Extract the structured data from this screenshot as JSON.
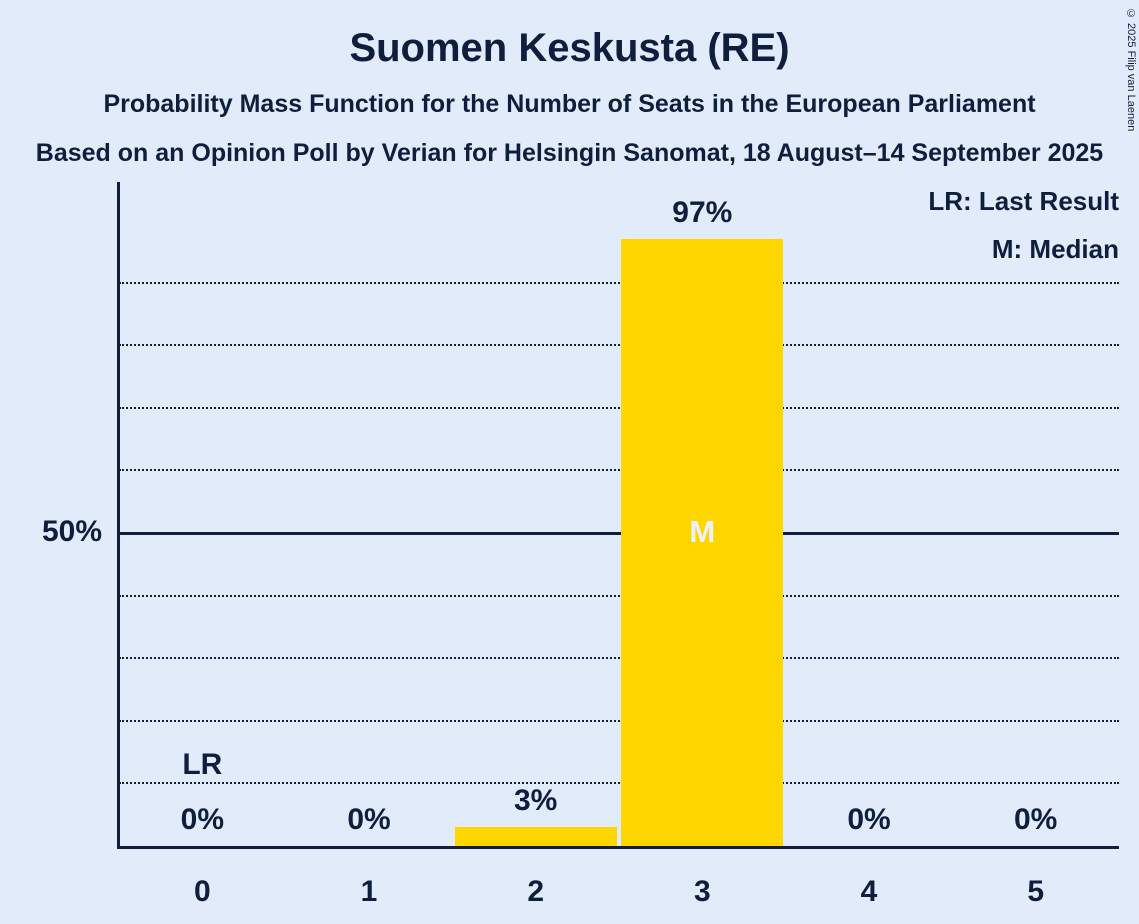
{
  "title": "Suomen Keskusta (RE)",
  "subtitle1": "Probability Mass Function for the Number of Seats in the European Parliament",
  "subtitle2": "Based on an Opinion Poll by Verian for Helsingin Sanomat, 18 August–14 September 2025",
  "copyright": "© 2025 Filip van Laenen",
  "legend": {
    "lr": "LR: Last Result",
    "m": "M: Median"
  },
  "y_axis_label": "50%",
  "colors": {
    "background": "#E1EBFA",
    "bar": "#FFD700",
    "text": "#0F1E3C",
    "median_marker": "#ECF1FB"
  },
  "chart_data": {
    "type": "bar",
    "title": "Suomen Keskusta (RE)",
    "categories": [
      "0",
      "1",
      "2",
      "3",
      "4",
      "5"
    ],
    "values": [
      0,
      0,
      3,
      97,
      0,
      0
    ],
    "value_labels": [
      "0%",
      "0%",
      "3%",
      "97%",
      "0%",
      "0%"
    ],
    "ylim": [
      0,
      100
    ],
    "ylabel": "",
    "xlabel": "",
    "gridlines_pct": [
      10,
      20,
      30,
      40,
      60,
      70,
      80,
      90
    ],
    "solid_line_pct": 50,
    "grid": "dotted-horizontal",
    "legend_position": "top-right",
    "median_category": "3",
    "median_marker": "M",
    "last_result_category": "0",
    "last_result_marker": "LR"
  }
}
